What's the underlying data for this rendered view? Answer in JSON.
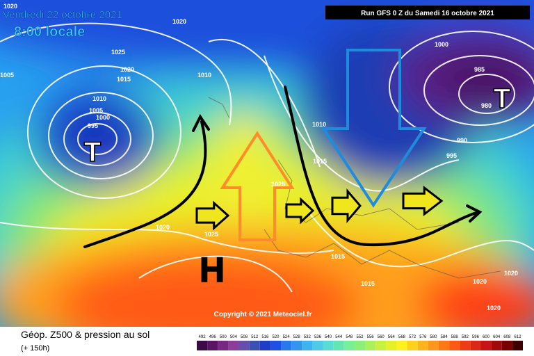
{
  "header": {
    "date": "Vendredi 22 octobre 2021",
    "time": "8:00 locale",
    "run": "Run GFS 0 Z du Samedi 16 octobre 2021"
  },
  "isobar_labels": [
    "1020",
    "1020",
    "1025",
    "1020",
    "1015",
    "1005",
    "1010",
    "1005",
    "1000",
    "995",
    "1010",
    "1000",
    "985",
    "980",
    "1010",
    "990",
    "995",
    "1015",
    "1025",
    "1020",
    "1025",
    "1015",
    "1015",
    "1020",
    "1020",
    "1020"
  ],
  "pressure_centers": [
    "H",
    "T",
    "T"
  ],
  "copyright": "Copyright © 2021 Meteociel.fr",
  "footer": {
    "title": "Géop. Z500 & pression au sol",
    "lead": "(+ 150h)"
  },
  "colorbar": {
    "labels": [
      492,
      496,
      500,
      504,
      508,
      512,
      516,
      520,
      524,
      528,
      532,
      536,
      540,
      544,
      548,
      552,
      556,
      560,
      564,
      568,
      572,
      576,
      580,
      584,
      588,
      592,
      596,
      600,
      604,
      608,
      612
    ],
    "colors": [
      "#3c0a46",
      "#5a1464",
      "#782882",
      "#8c3c9b",
      "#6450aa",
      "#3c50b4",
      "#1e3cc8",
      "#1e50e6",
      "#2878f0",
      "#3296f0",
      "#3cb4f0",
      "#50c8e6",
      "#5adcd2",
      "#64e6b4",
      "#78f096",
      "#8cf078",
      "#aaf05a",
      "#c8f03c",
      "#e6f028",
      "#fff01e",
      "#ffd21e",
      "#ffb41e",
      "#ff961e",
      "#ff7814",
      "#ff5a14",
      "#f03c14",
      "#dc2814",
      "#c81414",
      "#a00a0a",
      "#780000",
      "#3c0000"
    ]
  }
}
